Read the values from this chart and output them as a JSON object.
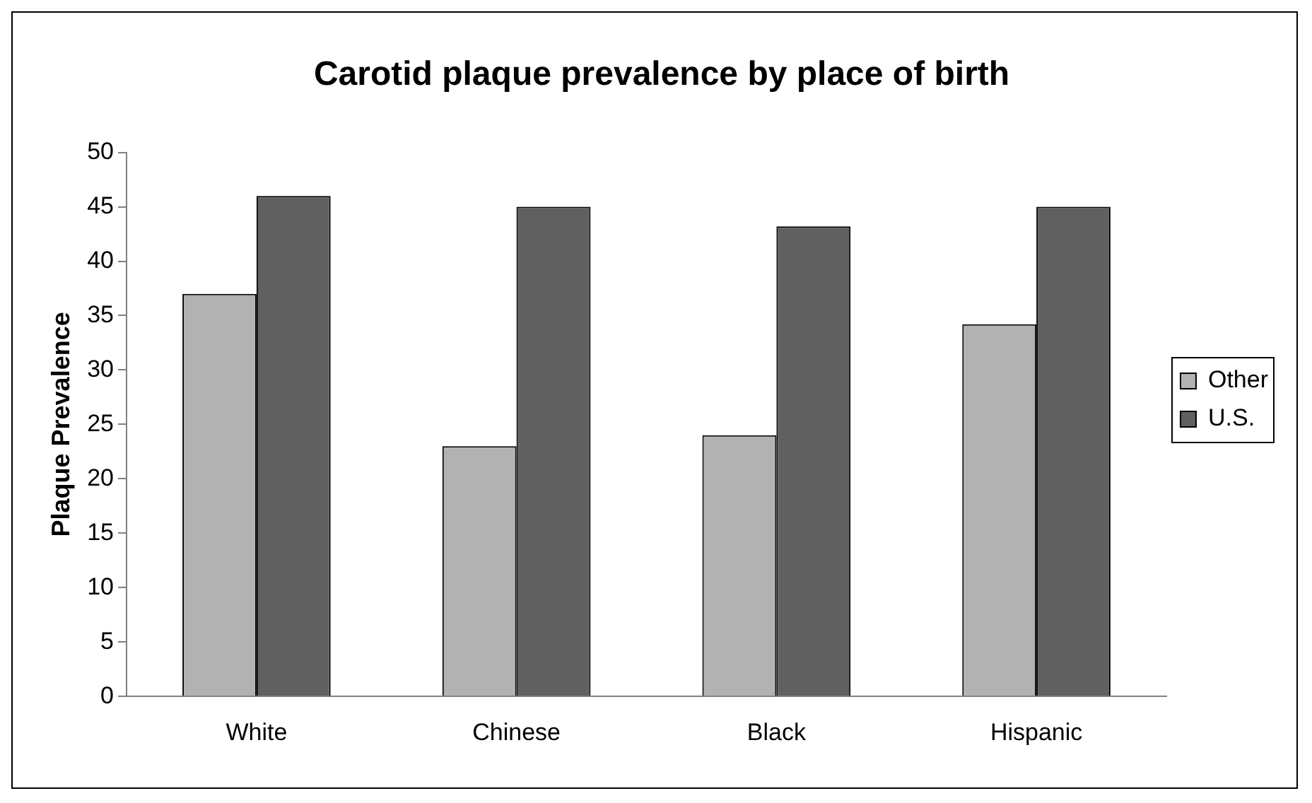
{
  "chart_data": {
    "type": "bar",
    "title": "Carotid plaque prevalence by place of birth",
    "ylabel": "Plaque Prevalence",
    "categories": [
      "White",
      "Chinese",
      "Black",
      "Hispanic"
    ],
    "series": [
      {
        "name": "Other",
        "color": "#b2b2b2",
        "values": [
          37,
          23,
          24,
          34.2
        ]
      },
      {
        "name": "U.S.",
        "color": "#606060",
        "values": [
          46,
          45,
          43.2,
          45
        ]
      }
    ],
    "ylim": [
      0,
      50
    ],
    "yticks": [
      0,
      5,
      10,
      15,
      20,
      25,
      30,
      35,
      40,
      45,
      50
    ],
    "grid": false,
    "legend": "right"
  }
}
